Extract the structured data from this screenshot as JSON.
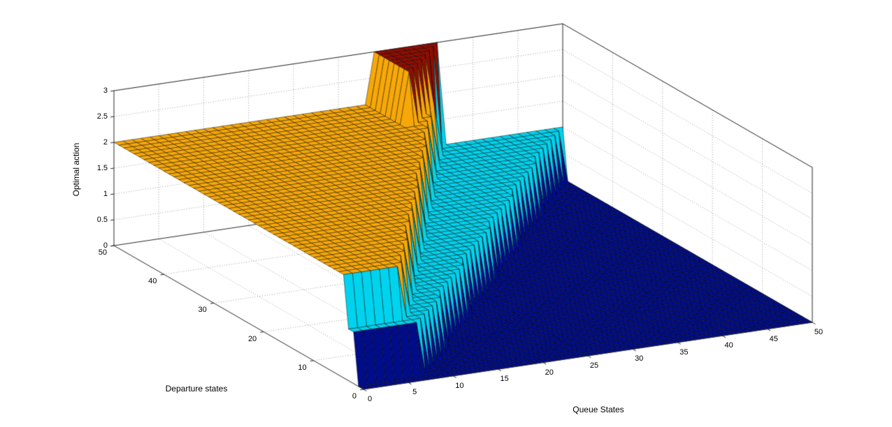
{
  "figure": {
    "background": "#ffffff"
  },
  "chart_data": {
    "type": "surface",
    "title": "",
    "xlabel": "Queue States",
    "ylabel": "Departure states",
    "zlabel": "Optimal action",
    "x_range": [
      0,
      50
    ],
    "y_range": [
      0,
      50
    ],
    "z_range": [
      0,
      3
    ],
    "x_ticks": [
      0,
      5,
      10,
      15,
      20,
      25,
      30,
      35,
      40,
      45,
      50
    ],
    "y_ticks": [
      0,
      10,
      20,
      30,
      40,
      50
    ],
    "z_ticks": [
      0,
      0.5,
      1,
      1.5,
      2,
      2.5,
      3
    ],
    "grid": true,
    "view": "matlab-default-3d",
    "surface_rule": {
      "description": "Optimal action z(q,d) on a 51x51 integer grid: action 0 (dark blue) for large queue states and for departure states < 2; action 1 (cyan) in a diagonal band q <= t2(d) for d >= 2; action 2 (orange) plateau q <= t1(d) for d >= 4; narrow spike of action 3 (dark red) near q 29-36, d 43-50.",
      "action1_d_min": 2,
      "action2_d_min": 4,
      "action2_q_max": {
        "intercept": 4,
        "slope_per_d": 0.64
      },
      "action1_q_max": {
        "intercept": 6,
        "slope_per_d": 0.88
      },
      "peak": {
        "value": 3,
        "q_min": 29,
        "q_max": 36,
        "widen_per_d": 1,
        "d_min": 43,
        "d_max": 50
      }
    },
    "colors": {
      "action0": "#000d87",
      "action1": "#00d3ee",
      "action2": "#f7a808",
      "action3": "#8e0e00"
    },
    "grid_color": "#999999",
    "axis_color": "#262626"
  }
}
